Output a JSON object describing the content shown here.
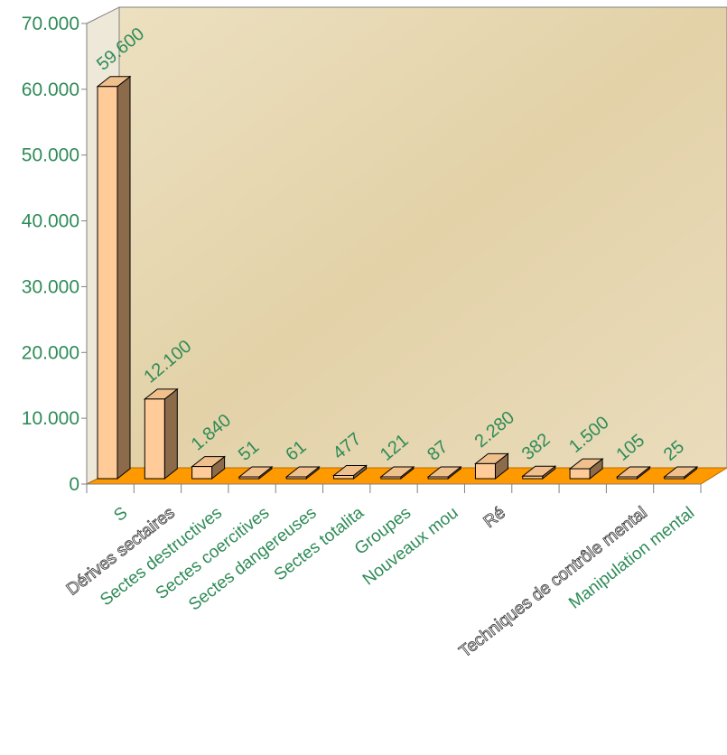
{
  "chart_data": {
    "type": "bar",
    "title": "",
    "xlabel": "",
    "ylabel": "",
    "ylim": [
      0,
      70000
    ],
    "y_ticks": [
      "0",
      "10.000",
      "20.000",
      "30.000",
      "40.000",
      "50.000",
      "60.000",
      "70.000"
    ],
    "grid": false,
    "legend": "none",
    "categories": [
      "S",
      "Dérives sectaires",
      "Sectes destructives",
      "Sectes coercitives",
      "Sectes dangereuses",
      "Sectes totalita",
      "Groupes",
      "Nouveaux mou",
      "Ré",
      "",
      "",
      "Techniques de contrôle mental",
      "Manipulation mental"
    ],
    "category_styles": [
      "green",
      "outline",
      "green",
      "green",
      "green",
      "green",
      "green",
      "green",
      "outline",
      "none",
      "none",
      "outline",
      "green"
    ],
    "values": [
      59600,
      12100,
      1840,
      51,
      61,
      477,
      121,
      87,
      2280,
      382,
      1500,
      105,
      25
    ],
    "value_labels": [
      "59.600",
      "12.100",
      "1.840",
      "51",
      "61",
      "477",
      "121",
      "87",
      "2.280",
      "382",
      "1.500",
      "105",
      "25"
    ]
  },
  "colors": {
    "text": "#2e8b57",
    "bar_front": "#ffcc99",
    "bar_side": "#8b6b4a",
    "bar_top": "#f0c08c",
    "floor": "#ff9900",
    "wall": "#e6d6b0",
    "axis": "#808080"
  }
}
